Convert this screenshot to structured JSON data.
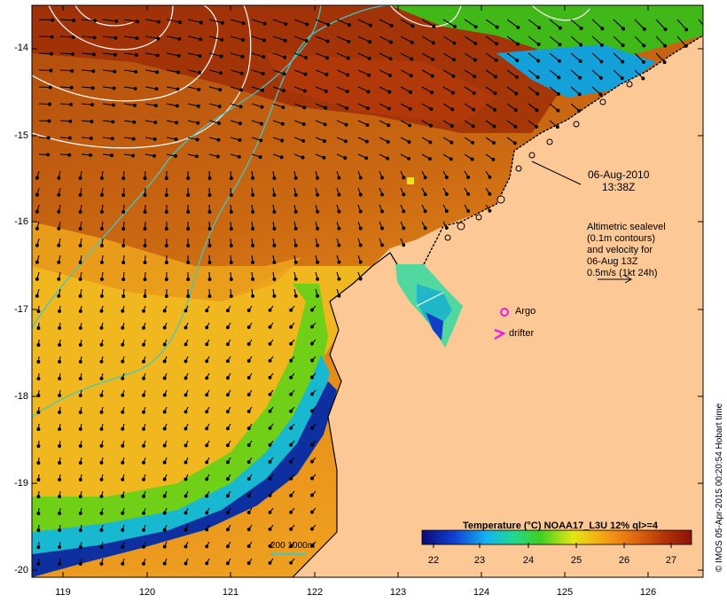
{
  "map": {
    "lat_labels": [
      "-14",
      "-15",
      "-16",
      "-17",
      "-18",
      "-19",
      "-20"
    ],
    "lon_labels": [
      "119",
      "120",
      "121",
      "122",
      "123",
      "124",
      "125",
      "126"
    ],
    "lat_range": [
      -20.1,
      -13.6
    ],
    "lon_range": [
      118.6,
      126.7
    ]
  },
  "annotations": {
    "date": "06-Aug-2010",
    "time": "13:38Z",
    "altimetry": [
      "Altimetric sealevel",
      "(0.1m contours)",
      "and velocity for",
      "06-Aug 13Z",
      "0.5m/s (1kt 24h)"
    ],
    "argo": "Argo",
    "drifter": "drifter",
    "depth_legend": "200  1000m"
  },
  "colorbar": {
    "title": "Temperature (°C) NOAA17_L3U 12% ql>=4",
    "ticks": [
      "22",
      "23",
      "24",
      "25",
      "26",
      "27"
    ],
    "range": [
      21.6,
      27.5
    ]
  },
  "credit": "© IMOS 05-Apr-2015 00:20:54 Hobart time",
  "colors": {
    "land": "#fcc896",
    "contour_white": "#ffffff",
    "isobath": "#3ec8c8",
    "argo": "#e61ee6",
    "drifter": "#e61ee6"
  }
}
